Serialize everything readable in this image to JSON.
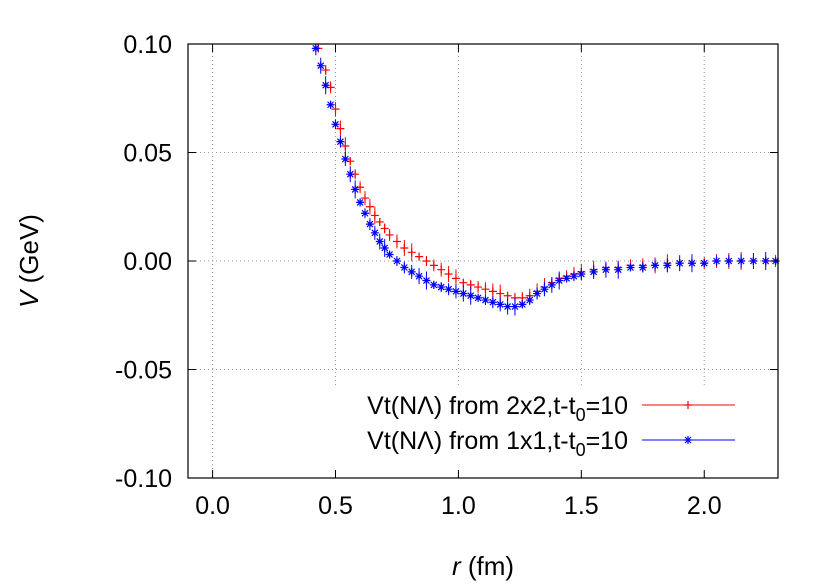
{
  "chart_data": {
    "type": "scatter",
    "xlabel_var": "r",
    "xlabel_unit": "(fm)",
    "ylabel_var": "V",
    "ylabel_unit": "(GeV)",
    "xlim": [
      -0.1,
      2.3
    ],
    "ylim": [
      -0.1,
      0.1
    ],
    "xticks": [
      0.0,
      0.5,
      1.0,
      1.5,
      2.0
    ],
    "xtick_labels": [
      "0.0",
      "0.5",
      "1.0",
      "1.5",
      "2.0"
    ],
    "yticks": [
      -0.1,
      -0.05,
      0.0,
      0.05,
      0.1
    ],
    "ytick_labels": [
      "-0.10",
      "-0.05",
      "0.00",
      "0.05",
      "0.10"
    ],
    "grid": true,
    "legend_position": "bottom-right",
    "series": [
      {
        "name_main": "Vt(NΛ) from 2x2,t-t",
        "name_sub": "0",
        "name_tail": "=10",
        "color": "#ff0000",
        "marker": "plus",
        "points": [
          [
            0.43,
            0.098
          ],
          [
            0.46,
            0.088
          ],
          [
            0.48,
            0.08
          ],
          [
            0.5,
            0.07
          ],
          [
            0.52,
            0.061
          ],
          [
            0.54,
            0.053
          ],
          [
            0.56,
            0.046
          ],
          [
            0.58,
            0.04
          ],
          [
            0.6,
            0.034
          ],
          [
            0.62,
            0.029
          ],
          [
            0.64,
            0.025
          ],
          [
            0.66,
            0.021
          ],
          [
            0.68,
            0.018
          ],
          [
            0.7,
            0.015
          ],
          [
            0.72,
            0.012
          ],
          [
            0.75,
            0.009
          ],
          [
            0.78,
            0.006
          ],
          [
            0.81,
            0.004
          ],
          [
            0.84,
            0.002
          ],
          [
            0.87,
            0.0
          ],
          [
            0.9,
            -0.002
          ],
          [
            0.93,
            -0.004
          ],
          [
            0.96,
            -0.006
          ],
          [
            0.99,
            -0.008
          ],
          [
            1.02,
            -0.01
          ],
          [
            1.05,
            -0.011
          ],
          [
            1.08,
            -0.012
          ],
          [
            1.11,
            -0.013
          ],
          [
            1.14,
            -0.014
          ],
          [
            1.17,
            -0.015
          ],
          [
            1.2,
            -0.016
          ],
          [
            1.23,
            -0.017
          ],
          [
            1.26,
            -0.017
          ],
          [
            1.29,
            -0.016
          ],
          [
            1.32,
            -0.014
          ],
          [
            1.35,
            -0.012
          ],
          [
            1.38,
            -0.01
          ],
          [
            1.41,
            -0.008
          ],
          [
            1.44,
            -0.007
          ],
          [
            1.47,
            -0.006
          ],
          [
            1.5,
            -0.005
          ],
          [
            1.55,
            -0.004
          ],
          [
            1.6,
            -0.003
          ],
          [
            1.65,
            -0.003
          ],
          [
            1.7,
            -0.002
          ],
          [
            1.75,
            -0.002
          ],
          [
            1.8,
            -0.002
          ],
          [
            1.85,
            -0.001
          ],
          [
            1.9,
            -0.001
          ],
          [
            1.95,
            -0.001
          ],
          [
            2.0,
            -0.001
          ],
          [
            2.05,
            0.0
          ],
          [
            2.1,
            0.0
          ],
          [
            2.15,
            0.0
          ],
          [
            2.2,
            0.0
          ],
          [
            2.25,
            0.0
          ],
          [
            2.29,
            0.0
          ]
        ]
      },
      {
        "name_main": "Vt(NΛ) from 1x1,t-t",
        "name_sub": "0",
        "name_tail": "=10",
        "color": "#0000ff",
        "marker": "star",
        "points": [
          [
            0.42,
            0.098
          ],
          [
            0.44,
            0.09
          ],
          [
            0.46,
            0.081
          ],
          [
            0.48,
            0.072
          ],
          [
            0.5,
            0.063
          ],
          [
            0.52,
            0.055
          ],
          [
            0.54,
            0.047
          ],
          [
            0.56,
            0.04
          ],
          [
            0.58,
            0.033
          ],
          [
            0.6,
            0.027
          ],
          [
            0.62,
            0.022
          ],
          [
            0.64,
            0.017
          ],
          [
            0.66,
            0.013
          ],
          [
            0.68,
            0.009
          ],
          [
            0.7,
            0.006
          ],
          [
            0.72,
            0.003
          ],
          [
            0.75,
            0.0
          ],
          [
            0.78,
            -0.003
          ],
          [
            0.81,
            -0.005
          ],
          [
            0.84,
            -0.007
          ],
          [
            0.87,
            -0.009
          ],
          [
            0.9,
            -0.011
          ],
          [
            0.93,
            -0.012
          ],
          [
            0.96,
            -0.013
          ],
          [
            0.99,
            -0.014
          ],
          [
            1.02,
            -0.015
          ],
          [
            1.05,
            -0.016
          ],
          [
            1.08,
            -0.017
          ],
          [
            1.11,
            -0.018
          ],
          [
            1.14,
            -0.019
          ],
          [
            1.17,
            -0.02
          ],
          [
            1.2,
            -0.021
          ],
          [
            1.23,
            -0.021
          ],
          [
            1.26,
            -0.02
          ],
          [
            1.29,
            -0.018
          ],
          [
            1.32,
            -0.015
          ],
          [
            1.35,
            -0.013
          ],
          [
            1.38,
            -0.011
          ],
          [
            1.41,
            -0.009
          ],
          [
            1.44,
            -0.008
          ],
          [
            1.47,
            -0.007
          ],
          [
            1.5,
            -0.006
          ],
          [
            1.55,
            -0.005
          ],
          [
            1.6,
            -0.004
          ],
          [
            1.65,
            -0.004
          ],
          [
            1.7,
            -0.003
          ],
          [
            1.75,
            -0.003
          ],
          [
            1.8,
            -0.002
          ],
          [
            1.85,
            -0.002
          ],
          [
            1.9,
            -0.001
          ],
          [
            1.95,
            -0.001
          ],
          [
            2.0,
            -0.001
          ],
          [
            2.05,
            0.0
          ],
          [
            2.1,
            0.0
          ],
          [
            2.15,
            0.0
          ],
          [
            2.2,
            0.0
          ],
          [
            2.25,
            0.0
          ],
          [
            2.29,
            0.0
          ]
        ]
      }
    ]
  }
}
